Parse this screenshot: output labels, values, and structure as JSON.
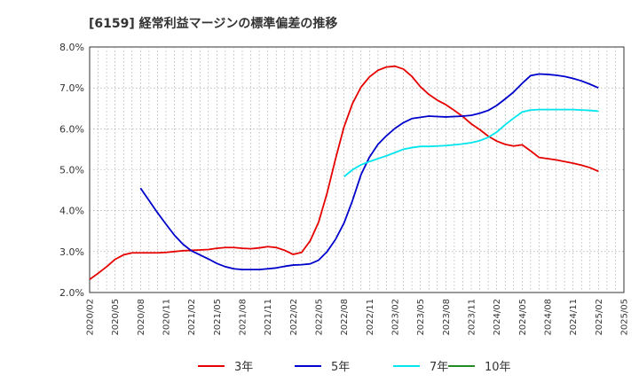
{
  "chart_data": {
    "type": "line",
    "title": "[6159]  経常利益マージンの標準偏差の推移",
    "xlabel": "",
    "ylabel": "",
    "ylim": [
      0.02,
      0.08
    ],
    "y_ticks": [
      0.02,
      0.03,
      0.04,
      0.05,
      0.06,
      0.07,
      0.08
    ],
    "y_tick_labels": [
      "2.0%",
      "3.0%",
      "4.0%",
      "5.0%",
      "6.0%",
      "7.0%",
      "8.0%"
    ],
    "x_tick_labels": [
      "2020/02",
      "2020/05",
      "2020/08",
      "2020/11",
      "2021/02",
      "2021/05",
      "2021/08",
      "2021/11",
      "2022/02",
      "2022/05",
      "2022/08",
      "2022/11",
      "2023/02",
      "2023/05",
      "2023/08",
      "2023/11",
      "2024/02",
      "2024/05",
      "2024/08",
      "2024/11",
      "2025/02",
      "2025/05"
    ],
    "x_start": "2020/02",
    "x_end": "2025/05",
    "grid": true,
    "legend_position": "bottom",
    "series": [
      {
        "name": "3年",
        "color": "#e60000",
        "x": [
          "2020/02",
          "2020/03",
          "2020/04",
          "2020/05",
          "2020/06",
          "2020/07",
          "2020/08",
          "2020/09",
          "2020/10",
          "2020/11",
          "2020/12",
          "2021/01",
          "2021/02",
          "2021/03",
          "2021/04",
          "2021/05",
          "2021/06",
          "2021/07",
          "2021/08",
          "2021/09",
          "2021/10",
          "2021/11",
          "2021/12",
          "2022/01",
          "2022/02",
          "2022/03",
          "2022/04",
          "2022/05",
          "2022/06",
          "2022/07",
          "2022/08",
          "2022/09",
          "2022/10",
          "2022/11",
          "2022/12",
          "2023/01",
          "2023/02",
          "2023/03",
          "2023/04",
          "2023/05",
          "2023/06",
          "2023/07",
          "2023/08",
          "2023/09",
          "2023/10",
          "2023/11",
          "2023/12",
          "2024/01",
          "2024/02",
          "2024/03",
          "2024/04",
          "2024/05",
          "2024/06",
          "2024/07",
          "2024/08",
          "2024/09",
          "2024/10",
          "2024/11",
          "2024/12",
          "2025/01",
          "2025/02"
        ],
        "values": [
          0.0232,
          0.0247,
          0.0263,
          0.0281,
          0.0292,
          0.0297,
          0.0297,
          0.0297,
          0.0297,
          0.0298,
          0.03,
          0.0302,
          0.0303,
          0.0304,
          0.0305,
          0.0308,
          0.031,
          0.031,
          0.0308,
          0.0307,
          0.0309,
          0.0312,
          0.031,
          0.0303,
          0.0293,
          0.0298,
          0.0326,
          0.0372,
          0.0443,
          0.0527,
          0.0605,
          0.0662,
          0.0702,
          0.0727,
          0.0743,
          0.0751,
          0.0753,
          0.0746,
          0.0728,
          0.0703,
          0.0684,
          0.067,
          0.0659,
          0.0645,
          0.063,
          0.0612,
          0.0598,
          0.0582,
          0.057,
          0.0562,
          0.0558,
          0.0561,
          0.0546,
          0.053,
          0.0527,
          0.0524,
          0.052,
          0.0516,
          0.0511,
          0.0505,
          0.0496
        ]
      },
      {
        "name": "5年",
        "color": "#0000cc",
        "x": [
          "2020/08",
          "2020/09",
          "2020/10",
          "2020/11",
          "2020/12",
          "2021/01",
          "2021/02",
          "2021/03",
          "2021/04",
          "2021/05",
          "2021/06",
          "2021/07",
          "2021/08",
          "2021/09",
          "2021/10",
          "2021/11",
          "2021/12",
          "2022/01",
          "2022/02",
          "2022/03",
          "2022/04",
          "2022/05",
          "2022/06",
          "2022/07",
          "2022/08",
          "2022/09",
          "2022/10",
          "2022/11",
          "2022/12",
          "2023/01",
          "2023/02",
          "2023/03",
          "2023/04",
          "2023/05",
          "2023/06",
          "2023/07",
          "2023/08",
          "2023/09",
          "2023/10",
          "2023/11",
          "2023/12",
          "2024/01",
          "2024/02",
          "2024/03",
          "2024/04",
          "2024/05",
          "2024/06",
          "2024/07",
          "2024/08",
          "2024/09",
          "2024/10",
          "2024/11",
          "2024/12",
          "2025/01",
          "2025/02"
        ],
        "values": [
          0.0455,
          0.0425,
          0.0395,
          0.0367,
          0.034,
          0.0318,
          0.0302,
          0.0292,
          0.0282,
          0.0271,
          0.0263,
          0.0258,
          0.0256,
          0.0256,
          0.0256,
          0.0258,
          0.026,
          0.0264,
          0.0267,
          0.0268,
          0.027,
          0.0279,
          0.03,
          0.033,
          0.037,
          0.0425,
          0.0488,
          0.0531,
          0.0562,
          0.0583,
          0.0601,
          0.0615,
          0.0625,
          0.0628,
          0.0631,
          0.063,
          0.0629,
          0.063,
          0.0631,
          0.0633,
          0.0638,
          0.0645,
          0.0657,
          0.0673,
          0.069,
          0.0711,
          0.073,
          0.0734,
          0.0733,
          0.0731,
          0.0728,
          0.0723,
          0.0717,
          0.0709,
          0.07
        ]
      },
      {
        "name": "7年",
        "color": "#00e5ee",
        "x": [
          "2022/08",
          "2022/09",
          "2022/10",
          "2022/11",
          "2022/12",
          "2023/01",
          "2023/02",
          "2023/03",
          "2023/04",
          "2023/05",
          "2023/06",
          "2023/07",
          "2023/08",
          "2023/09",
          "2023/10",
          "2023/11",
          "2023/12",
          "2024/01",
          "2024/02",
          "2024/03",
          "2024/04",
          "2024/05",
          "2024/06",
          "2024/07",
          "2024/08",
          "2024/09",
          "2024/10",
          "2024/11",
          "2024/12",
          "2025/01",
          "2025/02"
        ],
        "values": [
          0.0483,
          0.05,
          0.0512,
          0.052,
          0.0527,
          0.0534,
          0.0542,
          0.055,
          0.0554,
          0.0557,
          0.0557,
          0.0558,
          0.0559,
          0.0561,
          0.0563,
          0.0566,
          0.0571,
          0.0579,
          0.0592,
          0.061,
          0.0626,
          0.0641,
          0.0646,
          0.0647,
          0.0647,
          0.0647,
          0.0647,
          0.0647,
          0.0646,
          0.0645,
          0.0643
        ]
      },
      {
        "name": "10年",
        "color": "#228b22",
        "x": [],
        "values": []
      }
    ]
  }
}
